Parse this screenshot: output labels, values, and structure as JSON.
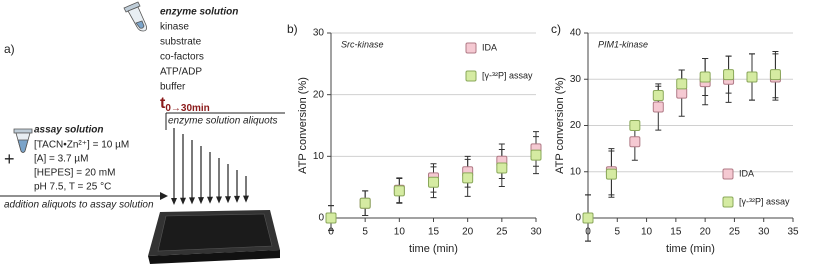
{
  "panel_labels": [
    "a)",
    "b)",
    "c)"
  ],
  "panel_a": {
    "enzyme_title": "enzyme solution",
    "enzyme_items": [
      "kinase",
      "substrate",
      "co-factors",
      "ATP/ADP",
      "buffer"
    ],
    "time": "t",
    "time_sub": "0→30min",
    "aliquots_label": "enzyme solution aliquots",
    "plus": "+",
    "assay_title": "assay solution",
    "assay_items": [
      "[TACN•Zn²⁺]  = 10 µM",
      "[A] = 3.7 µM",
      "[HEPES] = 20 mM",
      "pH 7.5, T = 25 °C"
    ],
    "addition_label": "addition aliquots to assay solution"
  },
  "chart_data": [
    {
      "type": "scatter",
      "title": "Src-kinase",
      "xlabel": "time (min)",
      "ylabel": "ATP conversion (%)",
      "xlim": [
        0,
        30
      ],
      "xticks": [
        0,
        5,
        10,
        15,
        20,
        25,
        30
      ],
      "ylim": [
        0,
        30
      ],
      "yticks": [
        0,
        10,
        20,
        30
      ],
      "grid": true,
      "legend": "upper right",
      "x": [
        0,
        5,
        10,
        15,
        20,
        25,
        30
      ],
      "series": [
        {
          "name": "IDA",
          "color": "#f5c9d2",
          "values": [
            0,
            2.4,
            4.5,
            6.5,
            7.5,
            9.2,
            11.2
          ],
          "errors": [
            2,
            2,
            2,
            2.3,
            2.5,
            2.8,
            2.8
          ]
        },
        {
          "name": "[γ-³²P] assay",
          "color": "#d5eba2",
          "values": [
            0,
            2.4,
            4.4,
            5.8,
            6.5,
            8.1,
            10.2
          ],
          "errors": [
            2,
            2,
            2,
            2.5,
            3,
            3,
            3
          ]
        }
      ]
    },
    {
      "type": "scatter",
      "title": "PIM1-kinase",
      "xlabel": "time (min)",
      "ylabel": "ATP conversion (%)",
      "xlim": [
        0,
        35
      ],
      "xticks": [
        0,
        5,
        10,
        15,
        20,
        25,
        30,
        35
      ],
      "ylim": [
        0,
        40
      ],
      "yticks": [
        0,
        10,
        20,
        30,
        40
      ],
      "grid": true,
      "legend": "lower right",
      "x": [
        0,
        4,
        8,
        12,
        16,
        20,
        24,
        28,
        32
      ],
      "series": [
        {
          "name": "IDA",
          "color": "#f5c9d2",
          "values": [
            0,
            10,
            16.5,
            24,
            27,
            29.5,
            30,
            30.5,
            30.5
          ],
          "errors": [
            5,
            5,
            4,
            5,
            5,
            5,
            5,
            5,
            5
          ]
        },
        {
          "name": "[γ-³²P] assay",
          "color": "#d5eba2",
          "values": [
            0,
            9.5,
            20,
            26.5,
            29,
            30.5,
            31,
            30.5,
            31
          ],
          "errors": [
            5,
            5,
            1,
            2,
            3,
            4,
            4,
            5,
            5
          ]
        }
      ]
    }
  ]
}
